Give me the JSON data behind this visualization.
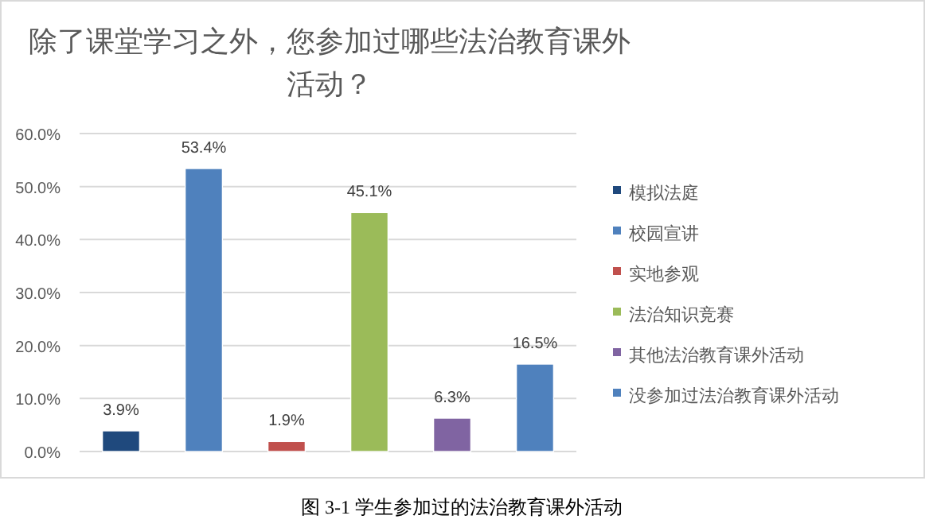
{
  "chart_data": {
    "type": "bar",
    "title": "除了课堂学习之外，您参加过哪些法治教育课外活动？",
    "categories": [
      null
    ],
    "series": [
      {
        "name": "模拟法庭",
        "color": "#1f497d",
        "values": [
          3.9
        ],
        "value_labels": [
          "3.9%"
        ]
      },
      {
        "name": "校园宣讲",
        "color": "#4f81bd",
        "values": [
          53.4
        ],
        "value_labels": [
          "53.4%"
        ]
      },
      {
        "name": "实地参观",
        "color": "#c0504d",
        "values": [
          1.9
        ],
        "value_labels": [
          "1.9%"
        ]
      },
      {
        "name": "法治知识竞赛",
        "color": "#9bbb59",
        "values": [
          45.1
        ],
        "value_labels": [
          "45.1%"
        ]
      },
      {
        "name": "其他法治教育课外活动",
        "color": "#8064a2",
        "values": [
          6.3
        ],
        "value_labels": [
          "6.3%"
        ]
      },
      {
        "name": "没参加过法治教育课外活动",
        "color": "#4f81bd",
        "values": [
          16.5
        ],
        "value_labels": [
          "16.5%"
        ]
      }
    ],
    "ylim": [
      0,
      60
    ],
    "yticks": [
      {
        "value": 0,
        "label": "0.0%"
      },
      {
        "value": 10,
        "label": "10.0%"
      },
      {
        "value": 20,
        "label": "20.0%"
      },
      {
        "value": 30,
        "label": "30.0%"
      },
      {
        "value": 40,
        "label": "40.0%"
      },
      {
        "value": 50,
        "label": "50.0%"
      },
      {
        "value": 60,
        "label": "60.0%"
      }
    ],
    "grid": "y",
    "legend": "right",
    "annotations": [
      "图 3-1 学生参加过的法治教育课外活动"
    ]
  }
}
